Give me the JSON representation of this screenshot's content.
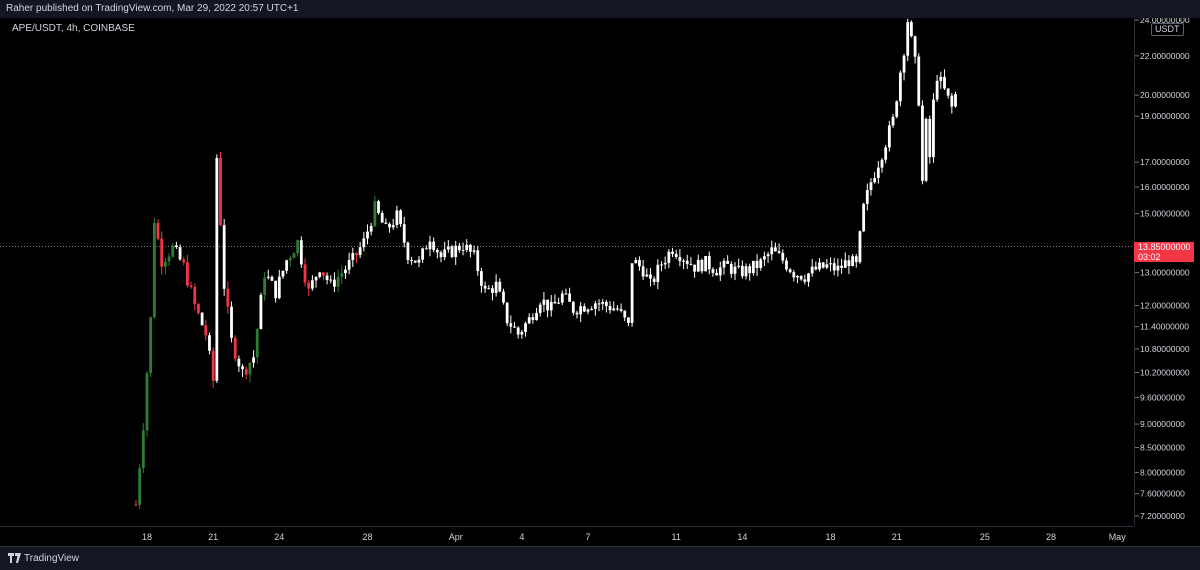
{
  "header": {
    "publisher_line": "Raher published on TradingView.com, Mar 29, 2022 20:57 UTC+1"
  },
  "symbol_line": "APE/USDT, 4h, COINBASE",
  "footer": {
    "brand": "TradingView"
  },
  "colors": {
    "up": "#26a69a",
    "up_candle": "#2e7d32",
    "down": "#f23645",
    "highlight": "#ffffff",
    "last_line": "#787b86"
  },
  "chart_data": {
    "type": "candlestick",
    "title": "APE/USDT, 4h, COINBASE",
    "price_unit": "USDT",
    "y_scale": "log",
    "y_ticks": [
      "24.00000000",
      "22.00000000",
      "20.00000000",
      "19.00000000",
      "17.00000000",
      "16.00000000",
      "15.00000000",
      "13.00000000",
      "12.00000000",
      "11.40000000",
      "10.80000000",
      "10.20000000",
      "9.60000000",
      "9.00000000",
      "8.50000000",
      "8.00000000",
      "7.60000000",
      "7.20000000"
    ],
    "x_ticks": [
      "18",
      "21",
      "24",
      "28",
      "Apr",
      "4",
      "7",
      "11",
      "14",
      "18",
      "21",
      "25",
      "28",
      "May"
    ],
    "last_price": {
      "price": "13.85000000",
      "countdown": "03:02"
    },
    "path": [
      [
        "Mar 17 12:00",
        7.4
      ],
      [
        "Mar 17 20:00",
        9.0
      ],
      [
        "Mar 18 04:00",
        11.6
      ],
      [
        "Mar 18 08:00",
        14.8
      ],
      [
        "Mar 18 16:00",
        13.4
      ],
      [
        "Mar 19 04:00",
        13.8
      ],
      [
        "Mar 19 16:00",
        13.2
      ],
      [
        "Mar 20 04:00",
        12.0
      ],
      [
        "Mar 20 16:00",
        11.2
      ],
      [
        "Mar 21 00:00",
        10.0
      ],
      [
        "Mar 21 04:00",
        17.2
      ],
      [
        "Mar 21 12:00",
        12.6
      ],
      [
        "Mar 21 20:00",
        11.0
      ],
      [
        "Mar 22 08:00",
        10.2
      ],
      [
        "Mar 22 20:00",
        10.6
      ],
      [
        "Mar 23 08:00",
        13.0
      ],
      [
        "Mar 23 20:00",
        12.4
      ],
      [
        "Mar 24 08:00",
        13.4
      ],
      [
        "Mar 24 20:00",
        14.0
      ],
      [
        "Mar 25 08:00",
        12.4
      ],
      [
        "Mar 25 20:00",
        13.2
      ],
      [
        "Mar 26 08:00",
        12.6
      ],
      [
        "Mar 26 20:00",
        13.0
      ],
      [
        "Mar 27 08:00",
        13.4
      ],
      [
        "Mar 27 20:00",
        14.0
      ],
      [
        "Mar 28 08:00",
        15.2
      ],
      [
        "Mar 28 20:00",
        14.4
      ],
      [
        "Mar 29 08:00",
        14.9
      ],
      [
        "Mar 29 20:00",
        13.6
      ],
      [
        "Mar 30 08:00",
        13.3
      ],
      [
        "Mar 30 20:00",
        14.2
      ],
      [
        "Mar 31 08:00",
        13.5
      ],
      [
        "Mar 31 20:00",
        13.7
      ],
      [
        "Apr 1 08:00",
        13.9
      ],
      [
        "Apr 1 20:00",
        13.5
      ],
      [
        "Apr 2 08:00",
        12.4
      ],
      [
        "Apr 2 20:00",
        12.6
      ],
      [
        "Apr 3 08:00",
        11.6
      ],
      [
        "Apr 3 20:00",
        11.2
      ],
      [
        "Apr 4 08:00",
        11.6
      ],
      [
        "Apr 4 20:00",
        12.2
      ],
      [
        "Apr 5 08:00",
        11.9
      ],
      [
        "Apr 5 20:00",
        12.3
      ],
      [
        "Apr 6 08:00",
        11.9
      ],
      [
        "Apr 6 20:00",
        12.0
      ],
      [
        "Apr 7 08:00",
        12.1
      ],
      [
        "Apr 7 20:00",
        12.0
      ],
      [
        "Apr 8 08:00",
        11.9
      ],
      [
        "Apr 8 20:00",
        11.4
      ],
      [
        "Apr 9 00:00",
        13.4
      ],
      [
        "Apr 9 12:00",
        13.1
      ],
      [
        "Apr 9 20:00",
        12.6
      ],
      [
        "Apr 10 08:00",
        13.3
      ],
      [
        "Apr 10 20:00",
        13.8
      ],
      [
        "Apr 11 08:00",
        13.5
      ],
      [
        "Apr 11 20:00",
        13.2
      ],
      [
        "Apr 12 08:00",
        13.3
      ],
      [
        "Apr 12 20:00",
        13.1
      ],
      [
        "Apr 13 08:00",
        13.2
      ],
      [
        "Apr 13 20:00",
        13.0
      ],
      [
        "Apr 14 08:00",
        13.1
      ],
      [
        "Apr 14 20:00",
        13.3
      ],
      [
        "Apr 15 08:00",
        13.7
      ],
      [
        "Apr 15 20:00",
        13.4
      ],
      [
        "Apr 16 08:00",
        13.0
      ],
      [
        "Apr 16 20:00",
        12.9
      ],
      [
        "Apr 17 08:00",
        13.1
      ],
      [
        "Apr 17 20:00",
        13.2
      ],
      [
        "Apr 18 08:00",
        13.1
      ],
      [
        "Apr 18 20:00",
        13.4
      ],
      [
        "Apr 19 04:00",
        13.2
      ],
      [
        "Apr 19 12:00",
        15.2
      ],
      [
        "Apr 19 20:00",
        16.2
      ],
      [
        "Apr 20 08:00",
        17.4
      ],
      [
        "Apr 20 20:00",
        18.8
      ],
      [
        "Apr 21 04:00",
        21.2
      ],
      [
        "Apr 21 08:00",
        22.4
      ],
      [
        "Apr 21 12:00",
        24.0
      ],
      [
        "Apr 21 20:00",
        21.6
      ],
      [
        "Apr 22 00:00",
        19.8
      ],
      [
        "Apr 22 04:00",
        16.2
      ],
      [
        "Apr 22 08:00",
        18.6
      ],
      [
        "Apr 22 12:00",
        17.2
      ],
      [
        "Apr 22 16:00",
        19.6
      ],
      [
        "Apr 22 20:00",
        21.0
      ],
      [
        "Apr 23 04:00",
        20.2
      ],
      [
        "Apr 23 12:00",
        19.4
      ],
      [
        "Apr 23 16:00",
        20.0
      ]
    ],
    "volatility": 0.022
  }
}
